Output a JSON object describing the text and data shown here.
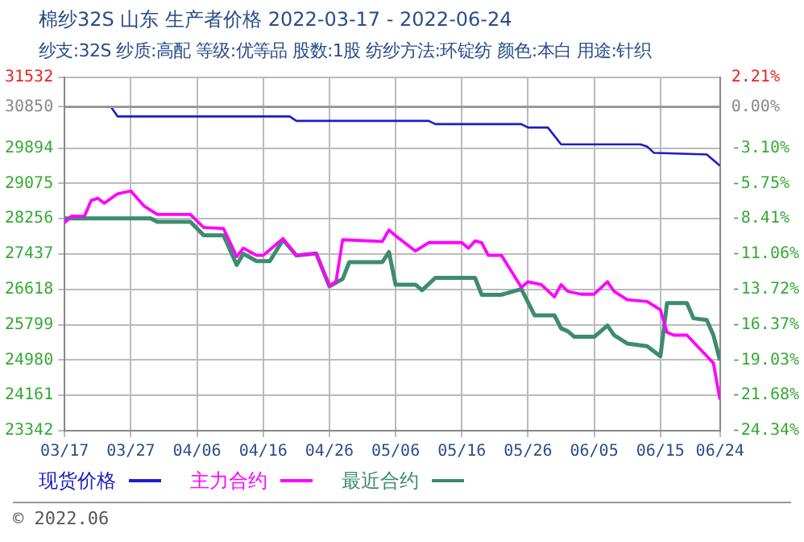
{
  "chart_data": {
    "type": "line",
    "title": "棉纱32S 山东 生产者价格 2022-03-17 - 2022-06-24",
    "subtitle": "纱支:32S 纱质:高配 等级:优等品 股数:1股 纺纱方法:环锭纺 颜色:本白 用途:针织",
    "annotations": [
      "© 2022.06"
    ],
    "xlim": [
      "2022-03-17",
      "2022-06-24"
    ],
    "xticks": [
      {
        "value": "2022-03-17",
        "label": "03/17"
      },
      {
        "value": "2022-03-27",
        "label": "03/27"
      },
      {
        "value": "2022-04-06",
        "label": "04/06"
      },
      {
        "value": "2022-04-16",
        "label": "04/16"
      },
      {
        "value": "2022-04-26",
        "label": "04/26"
      },
      {
        "value": "2022-05-06",
        "label": "05/06"
      },
      {
        "value": "2022-05-16",
        "label": "05/16"
      },
      {
        "value": "2022-05-26",
        "label": "05/26"
      },
      {
        "value": "2022-06-05",
        "label": "06/05"
      },
      {
        "value": "2022-06-15",
        "label": "06/15"
      },
      {
        "value": "2022-06-24",
        "label": "06/24"
      }
    ],
    "ylim": [
      23342,
      31532
    ],
    "yticks": [
      23342,
      24161,
      24980,
      25799,
      26618,
      27437,
      28256,
      29075,
      29894,
      30850,
      31532
    ],
    "y2lim": [
      -24.34,
      2.21
    ],
    "y2ticks": [
      {
        "value": -24.34,
        "label": "-24.34%"
      },
      {
        "value": -21.68,
        "label": "-21.68%"
      },
      {
        "value": -19.03,
        "label": "-19.03%"
      },
      {
        "value": -16.37,
        "label": "-16.37%"
      },
      {
        "value": -13.72,
        "label": "-13.72%"
      },
      {
        "value": -11.06,
        "label": "-11.06%"
      },
      {
        "value": -8.41,
        "label": "-8.41%"
      },
      {
        "value": -5.75,
        "label": "-5.75%"
      },
      {
        "value": -3.1,
        "label": "-3.10%"
      },
      {
        "value": 0,
        "label": "0.00%"
      },
      {
        "value": 2.21,
        "label": "2.21%"
      }
    ],
    "ref_lines": [
      {
        "axis": "y",
        "value": 30850,
        "color": "#999999"
      }
    ],
    "grid": true,
    "legend": "bottom",
    "marker": "none",
    "line_style": "solid",
    "series": [
      {
        "name": "现货价格",
        "color": "#1c1cc8",
        "x": [
          "2022-03-17",
          "2022-03-24",
          "2022-03-25",
          "2022-04-20",
          "2022-04-21",
          "2022-05-11",
          "2022-05-12",
          "2022-05-25",
          "2022-05-26",
          "2022-05-29",
          "2022-05-31",
          "2022-06-12",
          "2022-06-13",
          "2022-06-14",
          "2022-06-22",
          "2022-06-24"
        ],
        "values": [
          30850,
          30850,
          30628,
          30628,
          30525,
          30525,
          30450,
          30450,
          30370,
          30370,
          29980,
          29980,
          29930,
          29785,
          29745,
          29485
        ]
      },
      {
        "name": "主力合约",
        "color": "#ff00ff",
        "x": [
          "2022-03-17",
          "2022-03-18",
          "2022-03-20",
          "2022-03-21",
          "2022-03-22",
          "2022-03-23",
          "2022-03-25",
          "2022-03-27",
          "2022-03-29",
          "2022-03-31",
          "2022-04-05",
          "2022-04-07",
          "2022-04-10",
          "2022-04-12",
          "2022-04-13",
          "2022-04-15",
          "2022-04-16",
          "2022-04-19",
          "2022-04-21",
          "2022-04-24",
          "2022-04-26",
          "2022-04-27",
          "2022-04-28",
          "2022-05-04",
          "2022-05-05",
          "2022-05-06",
          "2022-05-09",
          "2022-05-11",
          "2022-05-16",
          "2022-05-17",
          "2022-05-18",
          "2022-05-19",
          "2022-05-20",
          "2022-05-22",
          "2022-05-25",
          "2022-05-26",
          "2022-05-28",
          "2022-05-30",
          "2022-05-31",
          "2022-06-01",
          "2022-06-03",
          "2022-06-05",
          "2022-06-07",
          "2022-06-08",
          "2022-06-10",
          "2022-06-13",
          "2022-06-15",
          "2022-06-16",
          "2022-06-17",
          "2022-06-19",
          "2022-06-21",
          "2022-06-23",
          "2022-06-24"
        ],
        "values": [
          28159,
          28315,
          28315,
          28678,
          28732,
          28615,
          28834,
          28900,
          28550,
          28354,
          28354,
          28054,
          28030,
          27379,
          27574,
          27406,
          27406,
          27796,
          27406,
          27450,
          26704,
          26800,
          27769,
          27730,
          27997,
          27860,
          27508,
          27703,
          27703,
          27574,
          27742,
          27700,
          27406,
          27406,
          26665,
          26794,
          26728,
          26443,
          26728,
          26572,
          26507,
          26507,
          26794,
          26572,
          26377,
          26338,
          26143,
          25624,
          25558,
          25558,
          25234,
          24910,
          24064
        ]
      },
      {
        "name": "最近合约",
        "color": "#3c8c6e",
        "x": [
          "2022-03-17",
          "2022-03-30",
          "2022-03-31",
          "2022-04-05",
          "2022-04-07",
          "2022-04-10",
          "2022-04-12",
          "2022-04-13",
          "2022-04-15",
          "2022-04-17",
          "2022-04-19",
          "2022-04-21",
          "2022-04-24",
          "2022-04-26",
          "2022-04-28",
          "2022-04-29",
          "2022-05-04",
          "2022-05-05",
          "2022-05-06",
          "2022-05-09",
          "2022-05-10",
          "2022-05-12",
          "2022-05-18",
          "2022-05-19",
          "2022-05-22",
          "2022-05-25",
          "2022-05-27",
          "2022-05-30",
          "2022-05-31",
          "2022-06-01",
          "2022-06-02",
          "2022-06-05",
          "2022-06-07",
          "2022-06-08",
          "2022-06-10",
          "2022-06-13",
          "2022-06-15",
          "2022-06-16",
          "2022-06-19",
          "2022-06-20",
          "2022-06-22",
          "2022-06-23",
          "2022-06-24"
        ],
        "values": [
          28264,
          28264,
          28186,
          28186,
          27874,
          27874,
          27184,
          27445,
          27274,
          27274,
          27769,
          27406,
          27450,
          26689,
          26860,
          27250,
          27250,
          27484,
          26728,
          26728,
          26599,
          26885,
          26885,
          26494,
          26494,
          26626,
          26014,
          26014,
          25714,
          25650,
          25519,
          25519,
          25780,
          25558,
          25363,
          25300,
          25066,
          26300,
          26300,
          25948,
          25910,
          25558,
          24973
        ]
      }
    ]
  }
}
